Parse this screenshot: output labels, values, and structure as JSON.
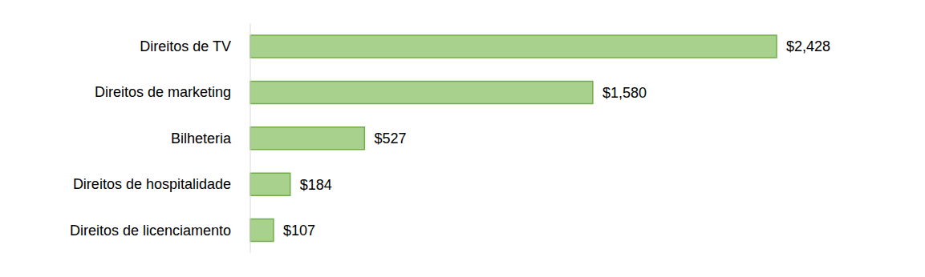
{
  "chart_data": {
    "type": "bar",
    "orientation": "horizontal",
    "categories": [
      "Direitos de TV",
      "Direitos de marketing",
      "Bilheteria",
      "Direitos de hospitalidade",
      "Direitos de licenciamento"
    ],
    "values": [
      2428,
      1580,
      527,
      184,
      107
    ],
    "value_labels": [
      "$2,428",
      "$1,580",
      "$527",
      "$184",
      "$107"
    ],
    "color": "#a9d18e",
    "data_labels": true,
    "tick_labels": "y",
    "grid": false
  }
}
